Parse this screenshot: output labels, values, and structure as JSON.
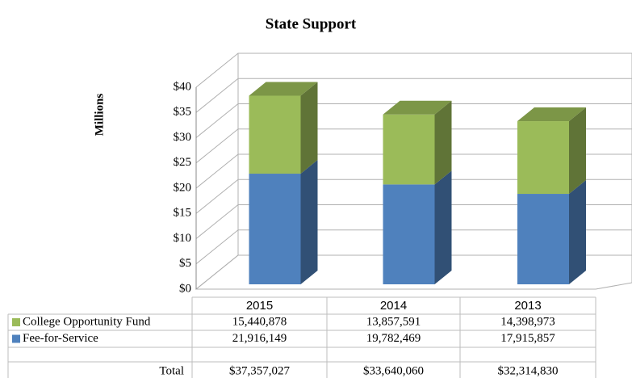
{
  "chart_data": {
    "type": "bar3d_stacked_table",
    "title": "State Support",
    "y_axis_label": "Millions",
    "categories": [
      "2015",
      "2014",
      "2013"
    ],
    "series": [
      {
        "name": "College Opportunity Fund",
        "color": "#9bbb59",
        "values": [
          15440878,
          13857591,
          14398973
        ],
        "value_labels": [
          "15,440,878",
          "13,857,591",
          "14,398,973"
        ]
      },
      {
        "name": "Fee-for-Service",
        "color": "#4f81bd",
        "values": [
          21916149,
          19782469,
          17915857
        ],
        "value_labels": [
          "21,916,149",
          "19,782,469",
          "17,915,857"
        ]
      }
    ],
    "total_label": "Total",
    "totals": [
      "$37,357,027",
      "$33,640,060",
      "$32,314,830"
    ],
    "ylim": [
      0,
      40000000
    ],
    "yticks": [
      {
        "value": 0,
        "label": "$0"
      },
      {
        "value": 5000000,
        "label": "$5"
      },
      {
        "value": 10000000,
        "label": "$10"
      },
      {
        "value": 15000000,
        "label": "$15"
      },
      {
        "value": 20000000,
        "label": "$20"
      },
      {
        "value": 25000000,
        "label": "$25"
      },
      {
        "value": 30000000,
        "label": "$30"
      },
      {
        "value": 35000000,
        "label": "$35"
      },
      {
        "value": 40000000,
        "label": "$40"
      }
    ],
    "grid": true
  }
}
